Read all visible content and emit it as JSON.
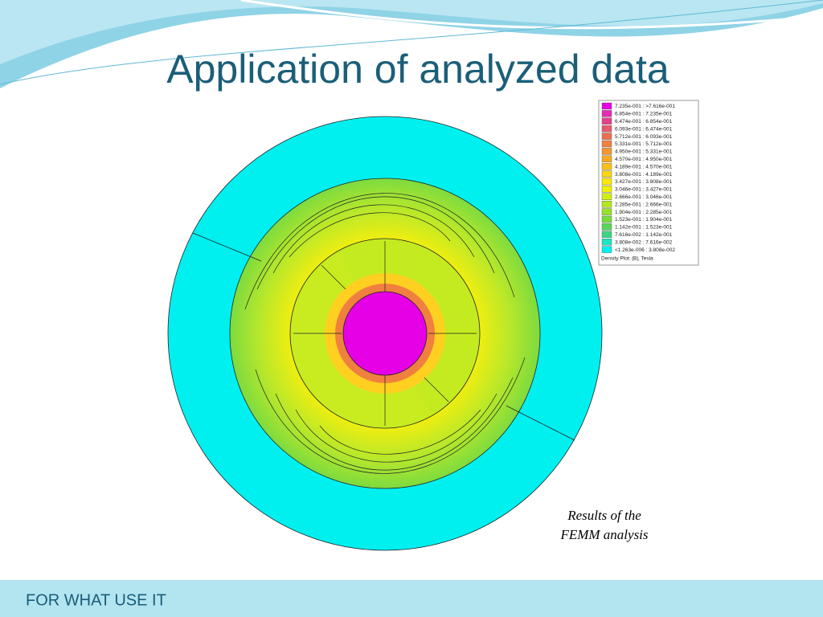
{
  "title": "Application of analyzed data",
  "legend": {
    "entries": [
      {
        "color": "#e600e6",
        "label": "7.235e-001 : >7.616e-001"
      },
      {
        "color": "#e62ab4",
        "label": "6.854e-001 : 7.235e-001"
      },
      {
        "color": "#e6408c",
        "label": "6.474e-001 : 6.854e-001"
      },
      {
        "color": "#e65a6e",
        "label": "6.093e-001 : 6.474e-001"
      },
      {
        "color": "#ec6e50",
        "label": "5.712e-001 : 6.093e-001"
      },
      {
        "color": "#f08040",
        "label": "5.331e-001 : 5.712e-001"
      },
      {
        "color": "#f5962e",
        "label": "4.950e-001 : 5.331e-001"
      },
      {
        "color": "#f8aa20",
        "label": "4.570e-001 : 4.950e-001"
      },
      {
        "color": "#fbc018",
        "label": "4.189e-001 : 4.570e-001"
      },
      {
        "color": "#fdd410",
        "label": "3.808e-001 : 4.189e-001"
      },
      {
        "color": "#ffe808",
        "label": "3.427e-001 : 3.808e-001"
      },
      {
        "color": "#f0f000",
        "label": "3.046e-001 : 3.427e-001"
      },
      {
        "color": "#d2ee10",
        "label": "2.666e-001 : 3.046e-001"
      },
      {
        "color": "#b4e81e",
        "label": "2.285e-001 : 2.666e-001"
      },
      {
        "color": "#96e22c",
        "label": "1.904e-001 : 2.285e-001"
      },
      {
        "color": "#78dc3c",
        "label": "1.523e-001 : 1.904e-001"
      },
      {
        "color": "#5ad65a",
        "label": "1.142e-001 : 1.523e-001"
      },
      {
        "color": "#3cd682",
        "label": "7.616e-002 : 1.142e-001"
      },
      {
        "color": "#1ee6be",
        "label": "3.808e-002 : 7.616e-002"
      },
      {
        "color": "#00f0f0",
        "label": "<1.263e-006 : 3.808e-002"
      }
    ],
    "caption": "Density Plot: |B|, Tesla"
  },
  "caption": {
    "lines": [
      "Results of the",
      "FEMM analysis"
    ]
  },
  "footer": "FOR WHAT USE IT"
}
